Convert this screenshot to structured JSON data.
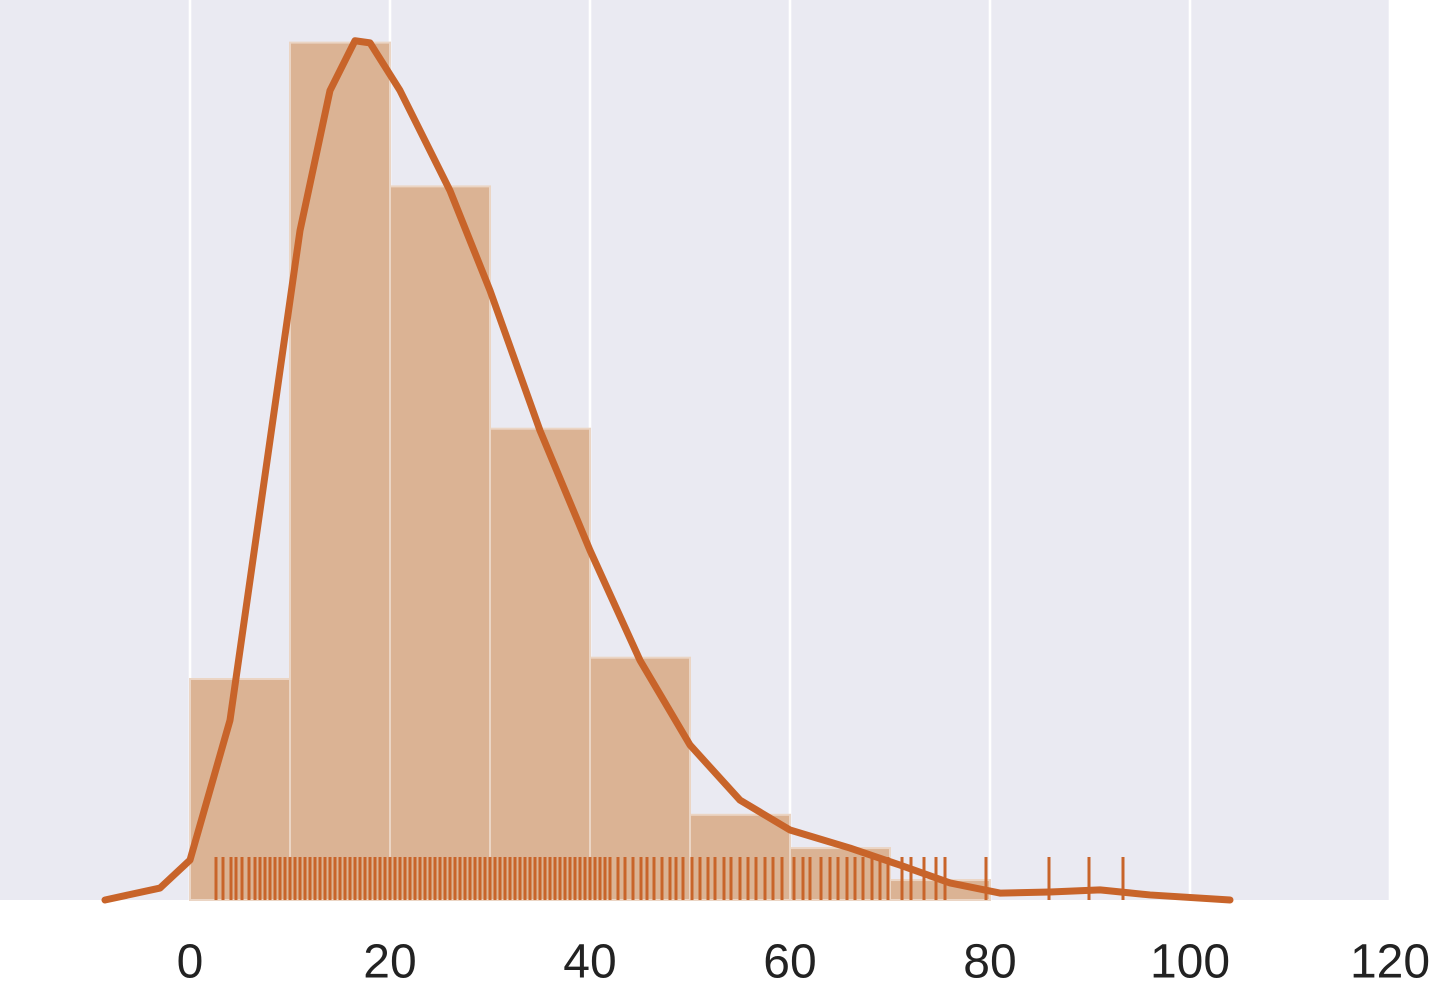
{
  "chart_data": {
    "type": "histogram",
    "bins": [
      0,
      10,
      20,
      30,
      40,
      50,
      60,
      70,
      80
    ],
    "values": [
      0.0083,
      0.0322,
      0.0268,
      0.0177,
      0.0091,
      0.0032,
      0.00195,
      0.00075
    ],
    "color": "#dbb394",
    "kde": {
      "color": "#c8642a",
      "x": [
        -8.5,
        -3,
        0,
        4,
        8,
        11,
        14,
        16.5,
        18,
        21,
        26,
        30,
        35,
        40,
        45,
        50,
        55,
        60,
        66,
        71,
        76,
        81,
        86,
        91,
        96,
        104
      ],
      "values": [
        0,
        0.00045,
        0.0015,
        0.00675,
        0.01726,
        0.02514,
        0.0304,
        0.03227,
        0.03219,
        0.0304,
        0.02664,
        0.02289,
        0.01763,
        0.01313,
        0.009,
        0.00582,
        0.00375,
        0.00263,
        0.00195,
        0.00131,
        0.00064,
        0.00026,
        0.0003,
        0.00038,
        0.00019,
        0
      ]
    },
    "rug": [
      2.6,
      3.3,
      4.1,
      4.6,
      5.2,
      5.9,
      6.5,
      7,
      7.5,
      8,
      8.5,
      9,
      9.5,
      10,
      10.5,
      11,
      11.5,
      12,
      12.5,
      13,
      13.5,
      14,
      14.5,
      15,
      15.5,
      16,
      16.5,
      17,
      17.5,
      18,
      18.5,
      19,
      19.5,
      20,
      20.5,
      21,
      21.5,
      22,
      22.5,
      23,
      23.5,
      24,
      24.5,
      25,
      25.5,
      26,
      26.5,
      27,
      27.5,
      28,
      28.5,
      29,
      29.5,
      30,
      30.5,
      31,
      31.5,
      32,
      32.5,
      33,
      33.5,
      34,
      34.5,
      35,
      35.5,
      36,
      36.5,
      37,
      37.5,
      38,
      38.5,
      39,
      39.5,
      40,
      40.5,
      41,
      41.5,
      42,
      42.8,
      43.5,
      44.3,
      45.1,
      45.7,
      46.4,
      47.2,
      48,
      48.6,
      49.3,
      50.2,
      51,
      51.8,
      52.5,
      53.4,
      54.1,
      55,
      55.8,
      56.6,
      57.5,
      58.3,
      59.2,
      60.4,
      61.3,
      62,
      63.1,
      64,
      64.8,
      65.7,
      66.5,
      67.3,
      68.2,
      69,
      69.8,
      71.2,
      72.1,
      73.4,
      74.6,
      75.5,
      79.6,
      85.9,
      89.9,
      93.3
    ],
    "xlim": [
      -19,
      120
    ],
    "xticks": [
      0,
      20,
      40,
      60,
      80,
      100,
      120
    ],
    "ylim": [
      0,
      0.0338
    ],
    "grid": true
  }
}
